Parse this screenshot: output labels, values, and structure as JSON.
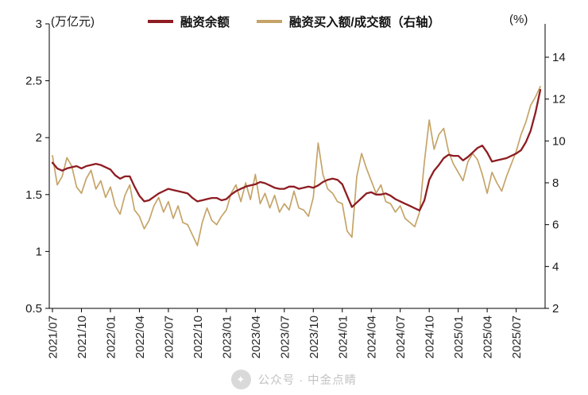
{
  "watermark": {
    "text": "公众号 · 中金点睛"
  },
  "chart_data": {
    "type": "line",
    "title": "",
    "x_start": "2021/07",
    "x_end": "2025/09",
    "points_per_month": 2,
    "grid": false,
    "legend_position": "top-center",
    "x_ticks": [
      "2021/07",
      "2021/10",
      "2022/01",
      "2022/04",
      "2022/07",
      "2022/10",
      "2023/01",
      "2023/04",
      "2023/07",
      "2023/10",
      "2024/01",
      "2024/04",
      "2024/07",
      "2024/10",
      "2025/01",
      "2025/04",
      "2025/07"
    ],
    "y_left": {
      "unit": "(万亿元)",
      "min": 0.5,
      "max": 3,
      "ticks": [
        0.5,
        1,
        1.5,
        2,
        2.5,
        3
      ]
    },
    "y_right": {
      "unit": "(%)",
      "min": 2,
      "max": 14,
      "ticks": [
        2,
        4,
        6,
        8,
        10,
        12,
        14
      ]
    },
    "series": [
      {
        "name": "融资余额",
        "axis": "left",
        "color": "#8e1d22",
        "stroke_width": 2.3,
        "values": [
          1.78,
          1.73,
          1.71,
          1.73,
          1.74,
          1.75,
          1.73,
          1.75,
          1.76,
          1.77,
          1.76,
          1.74,
          1.72,
          1.67,
          1.64,
          1.66,
          1.66,
          1.57,
          1.49,
          1.44,
          1.45,
          1.48,
          1.51,
          1.53,
          1.55,
          1.54,
          1.53,
          1.52,
          1.51,
          1.47,
          1.44,
          1.45,
          1.46,
          1.47,
          1.47,
          1.45,
          1.46,
          1.5,
          1.53,
          1.55,
          1.57,
          1.58,
          1.59,
          1.61,
          1.6,
          1.58,
          1.56,
          1.55,
          1.55,
          1.57,
          1.57,
          1.55,
          1.56,
          1.57,
          1.56,
          1.58,
          1.61,
          1.63,
          1.64,
          1.63,
          1.59,
          1.49,
          1.39,
          1.43,
          1.47,
          1.51,
          1.52,
          1.5,
          1.5,
          1.51,
          1.49,
          1.46,
          1.44,
          1.42,
          1.4,
          1.38,
          1.36,
          1.45,
          1.63,
          1.71,
          1.76,
          1.82,
          1.85,
          1.84,
          1.84,
          1.8,
          1.83,
          1.87,
          1.91,
          1.93,
          1.87,
          1.79,
          1.8,
          1.81,
          1.82,
          1.84,
          1.86,
          1.89,
          1.96,
          2.06,
          2.22,
          2.42
        ]
      },
      {
        "name": "融资买入额/成交额（右轴）",
        "axis": "right",
        "color": "#c5a469",
        "stroke_width": 1.7,
        "values": [
          9.3,
          7.9,
          8.3,
          9.2,
          8.8,
          7.8,
          7.5,
          8.2,
          8.6,
          7.7,
          8.1,
          7.3,
          7.8,
          6.9,
          6.5,
          7.4,
          7.9,
          6.7,
          6.4,
          5.8,
          6.2,
          6.9,
          7.3,
          6.6,
          7.1,
          6.3,
          6.9,
          6.1,
          6.0,
          5.5,
          5.0,
          6.1,
          6.8,
          6.2,
          6.0,
          6.4,
          6.7,
          7.5,
          7.9,
          7.1,
          8.0,
          7.2,
          8.4,
          7.0,
          7.5,
          6.8,
          7.4,
          6.6,
          7.0,
          6.7,
          7.6,
          6.8,
          6.7,
          6.4,
          7.3,
          9.9,
          8.4,
          7.7,
          7.5,
          7.1,
          7.0,
          5.7,
          5.4,
          8.3,
          9.4,
          8.7,
          8.1,
          7.5,
          7.9,
          7.1,
          7.0,
          6.6,
          6.9,
          6.3,
          6.1,
          5.9,
          6.6,
          9.0,
          11.0,
          9.6,
          10.3,
          10.6,
          9.5,
          8.9,
          8.5,
          8.1,
          9.0,
          9.4,
          9.1,
          8.4,
          7.5,
          8.5,
          8.0,
          7.6,
          8.3,
          8.9,
          9.5,
          10.3,
          10.9,
          11.7,
          12.1,
          12.6
        ]
      }
    ]
  }
}
